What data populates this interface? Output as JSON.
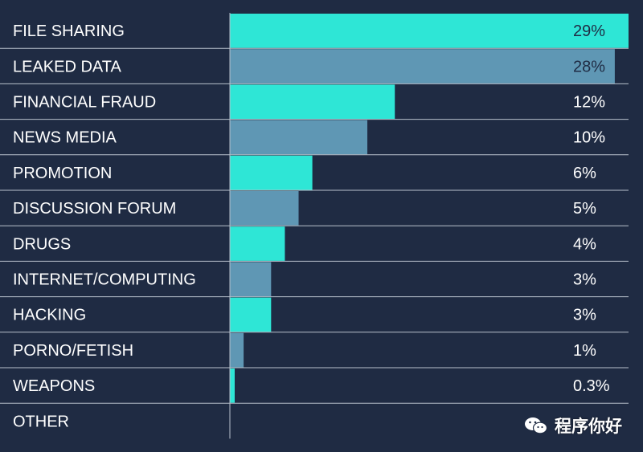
{
  "chart_data": {
    "type": "bar",
    "orientation": "horizontal",
    "categories": [
      "FILE SHARING",
      "LEAKED DATA",
      "FINANCIAL FRAUD",
      "NEWS MEDIA",
      "PROMOTION",
      "DISCUSSION FORUM",
      "DRUGS",
      "INTERNET/COMPUTING",
      "HACKING",
      "PORNO/FETISH",
      "WEAPONS",
      "OTHER"
    ],
    "values": [
      29,
      28,
      12,
      10,
      6,
      5,
      4,
      3,
      3,
      1,
      0.3,
      0
    ],
    "value_labels": [
      "29%",
      "28%",
      "12%",
      "10%",
      "6%",
      "5%",
      "4%",
      "3%",
      "3%",
      "1%",
      "0.3%",
      ""
    ],
    "xlim": [
      0,
      29
    ],
    "grid": false,
    "colors": [
      "#2ee6d6",
      "#5f97b4"
    ]
  },
  "watermark": {
    "icon": "wechat-icon",
    "text": "程序你好"
  }
}
